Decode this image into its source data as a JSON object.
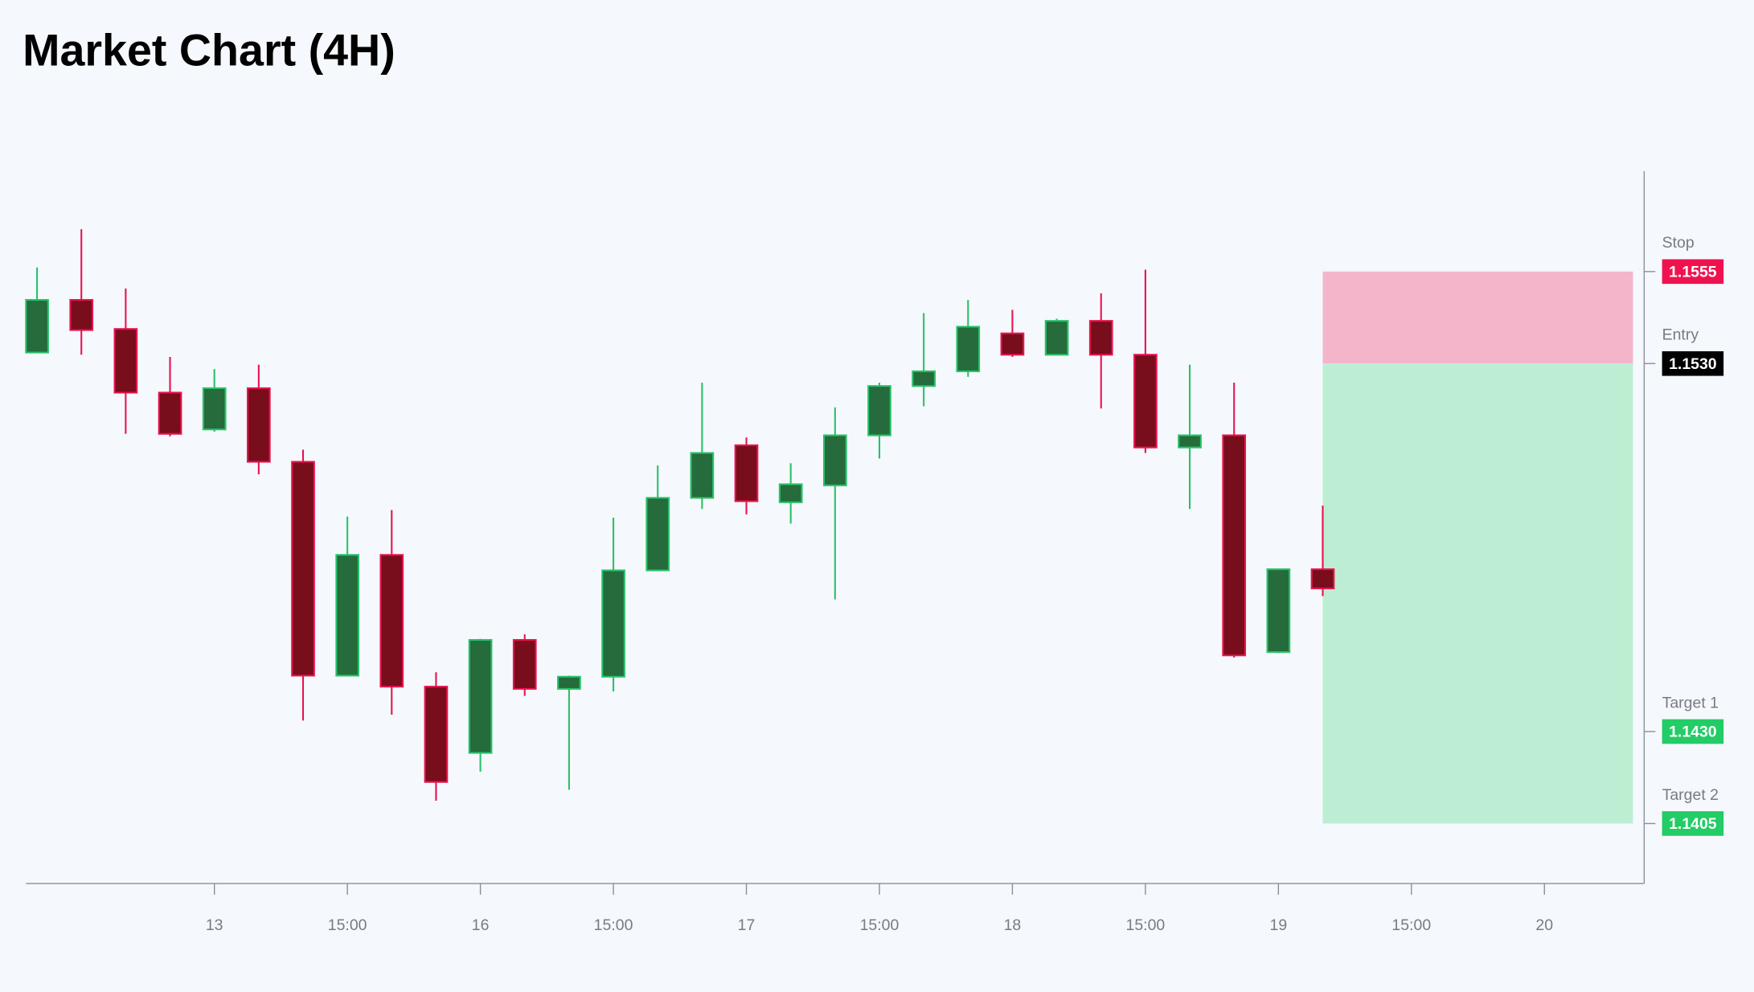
{
  "chart_data": {
    "type": "candlestick",
    "title": "Market Chart (4H)",
    "x": [
      0,
      1,
      2,
      3,
      4,
      5,
      6,
      7,
      8,
      9,
      10,
      11,
      12,
      13,
      14,
      15,
      16,
      17,
      18,
      19,
      20,
      21,
      22,
      23,
      24,
      25,
      26,
      27,
      28,
      29
    ],
    "open": [
      1.1533,
      1.15473,
      1.15394,
      1.15221,
      1.15121,
      1.15233,
      1.15033,
      1.14452,
      1.1478,
      1.14422,
      1.14242,
      1.14549,
      1.14416,
      1.14449,
      1.14738,
      1.14935,
      1.15078,
      1.14923,
      1.14969,
      1.15105,
      1.15239,
      1.15279,
      1.15382,
      1.15324,
      1.15416,
      1.15324,
      1.15072,
      1.15105,
      1.14516,
      1.14741
    ],
    "high": [
      1.15561,
      1.15665,
      1.15504,
      1.15318,
      1.15285,
      1.15297,
      1.15066,
      1.14884,
      1.14902,
      1.14461,
      1.14552,
      1.14564,
      1.14452,
      1.14881,
      1.15023,
      1.15248,
      1.15099,
      1.15029,
      1.15181,
      1.15248,
      1.15437,
      1.15473,
      1.15446,
      1.15422,
      1.15491,
      1.15555,
      1.15297,
      1.15248,
      1.14741,
      1.14914
    ],
    "low": [
      1.1533,
      1.15324,
      1.15109,
      1.15102,
      1.15115,
      1.14999,
      1.1433,
      1.14452,
      1.14346,
      1.14112,
      1.14191,
      1.14397,
      1.14142,
      1.14409,
      1.14738,
      1.14905,
      1.1489,
      1.14865,
      1.14659,
      1.15042,
      1.15184,
      1.15264,
      1.15318,
      1.15324,
      1.15178,
      1.15057,
      1.14905,
      1.14501,
      1.14513,
      1.14668
    ],
    "close": [
      1.15473,
      1.15391,
      1.15221,
      1.15109,
      1.15233,
      1.15033,
      1.14452,
      1.1478,
      1.14422,
      1.14163,
      1.14549,
      1.14416,
      1.14449,
      1.14738,
      1.14935,
      1.15057,
      1.14926,
      1.14972,
      1.15105,
      1.15239,
      1.15279,
      1.154,
      1.15324,
      1.15416,
      1.15324,
      1.15072,
      1.15105,
      1.14507,
      1.14741,
      1.14689
    ],
    "up_color": {
      "body": "#256b3b",
      "border": "#27c26a"
    },
    "down_color": {
      "body": "#780d1c",
      "border": "#e8134f"
    },
    "xlim": [
      -0.25,
      36.25
    ],
    "xticks": [
      {
        "value": 4,
        "label": "13"
      },
      {
        "value": 7,
        "label": "15:00"
      },
      {
        "value": 10,
        "label": "16"
      },
      {
        "value": 13,
        "label": "15:00"
      },
      {
        "value": 16,
        "label": "17"
      },
      {
        "value": 19,
        "label": "15:00"
      },
      {
        "value": 22,
        "label": "18"
      },
      {
        "value": 25,
        "label": "15:00"
      },
      {
        "value": 28,
        "label": "19"
      },
      {
        "value": 31,
        "label": "15:00"
      },
      {
        "value": 34,
        "label": "20"
      }
    ],
    "ylim": [
      1.13887,
      1.15823
    ],
    "levels": [
      {
        "name": "Stop",
        "value": 1.1555,
        "color": "#f0124f"
      },
      {
        "name": "Entry",
        "value": 1.153,
        "value_label": "1.1530",
        "color": "#000000"
      },
      {
        "name": "Target 1",
        "value": 1.143,
        "value_label": "1.1430",
        "color": "#22cc66"
      },
      {
        "name": "Target 2",
        "value": 1.1405,
        "color": "#22cc66"
      }
    ],
    "risk_color": "#f4b5cb",
    "reward_color": "#bdeed3"
  }
}
